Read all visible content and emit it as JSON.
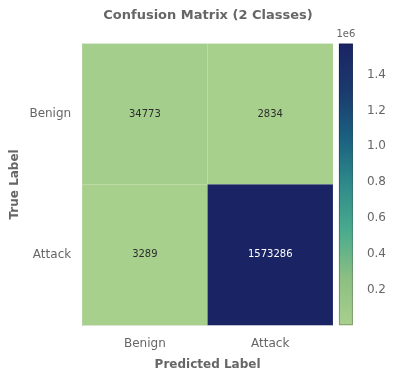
{
  "chart_data": {
    "type": "heatmap",
    "title": "Confusion Matrix (2 Classes)",
    "xlabel": "Predicted Label",
    "ylabel": "True Label",
    "categories": [
      "Benign",
      "Attack"
    ],
    "y_categories": [
      "Benign",
      "Attack"
    ],
    "values": [
      [
        34773,
        2834
      ],
      [
        3289,
        1573286
      ]
    ],
    "data_labels": true,
    "grid": false,
    "colorbar": {
      "lim": [
        0,
        1573286
      ],
      "ticks": [
        {
          "value": 200000,
          "label": "0.2"
        },
        {
          "value": 400000,
          "label": "0.4"
        },
        {
          "value": 600000,
          "label": "0.6"
        },
        {
          "value": 800000,
          "label": "0.8"
        },
        {
          "value": 1000000,
          "label": "1.0"
        },
        {
          "value": 1200000,
          "label": "1.2"
        },
        {
          "value": 1400000,
          "label": "1.4"
        }
      ],
      "title": "1e6",
      "colors": [
        "#a8d08d",
        "#8cbf82",
        "#4aab8e",
        "#2f8a8a",
        "#1a6080",
        "#1a3a6e",
        "#1a2464"
      ]
    }
  }
}
